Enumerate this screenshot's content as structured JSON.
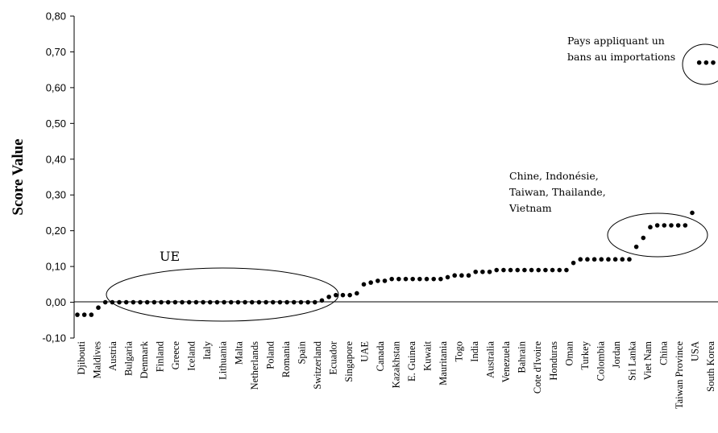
{
  "chart_data": {
    "type": "scatter",
    "title": "",
    "xlabel": "",
    "ylabel": "Score Value",
    "ylim": [
      -0.1,
      0.8
    ],
    "yticks": [
      "-0,10",
      "0,00",
      "0,10",
      "0,20",
      "0,30",
      "0,40",
      "0,50",
      "0,60",
      "0,70",
      "0,80"
    ],
    "grid": false,
    "legend": "none",
    "point_color": "#000000",
    "categories_labeled": [
      "Djibouti",
      "Maldives",
      "Austria",
      "Bulgaria",
      "Denmark",
      "Finland",
      "Greece",
      "Iceland",
      "Italy",
      "Lithuania",
      "Malta",
      "Netherlands",
      "Poland",
      "Romania",
      "Spain",
      "Switzerland",
      "Ecuador",
      "Singapore",
      "UAE",
      "Canada",
      "Kazakhstan",
      "E. Guinea",
      "Kuwait",
      "Mauritania",
      "Togo",
      "India",
      "Australia",
      "Venezuela",
      "Bahrain",
      "Cote d'Ivoire",
      "Honduras",
      "Oman",
      "Turkey",
      "Colombia",
      "Jordan",
      "Sri Lanka",
      "Viet Nam",
      "China",
      "Taiwan Province",
      "USA",
      "South Korea"
    ],
    "values": [
      -0.035,
      -0.035,
      -0.035,
      -0.015,
      0.0,
      0.0,
      0.0,
      0.0,
      0.0,
      0.0,
      0.0,
      0.0,
      0.0,
      0.0,
      0.0,
      0.0,
      0.0,
      0.0,
      0.0,
      0.0,
      0.0,
      0.0,
      0.0,
      0.0,
      0.0,
      0.0,
      0.0,
      0.0,
      0.0,
      0.0,
      0.0,
      0.0,
      0.0,
      0.0,
      0.0,
      0.005,
      0.015,
      0.02,
      0.02,
      0.02,
      0.025,
      0.05,
      0.055,
      0.06,
      0.06,
      0.065,
      0.065,
      0.065,
      0.065,
      0.065,
      0.065,
      0.065,
      0.065,
      0.07,
      0.075,
      0.075,
      0.075,
      0.085,
      0.085,
      0.085,
      0.09,
      0.09,
      0.09,
      0.09,
      0.09,
      0.09,
      0.09,
      0.09,
      0.09,
      0.09,
      0.09,
      0.11,
      0.12,
      0.12,
      0.12,
      0.12,
      0.12,
      0.12,
      0.12,
      0.12,
      0.155,
      0.18,
      0.21,
      0.215,
      0.215,
      0.215,
      0.215,
      0.215,
      0.25,
      0.67,
      0.67,
      0.67
    ],
    "annotations": [
      {
        "text": "UE"
      },
      {
        "lines": [
          "Chine, Indonésie,",
          "Taiwan, Thailande,",
          "Vietnam"
        ]
      },
      {
        "lines": [
          "Pays appliquant un",
          "bans au importations"
        ]
      }
    ]
  }
}
